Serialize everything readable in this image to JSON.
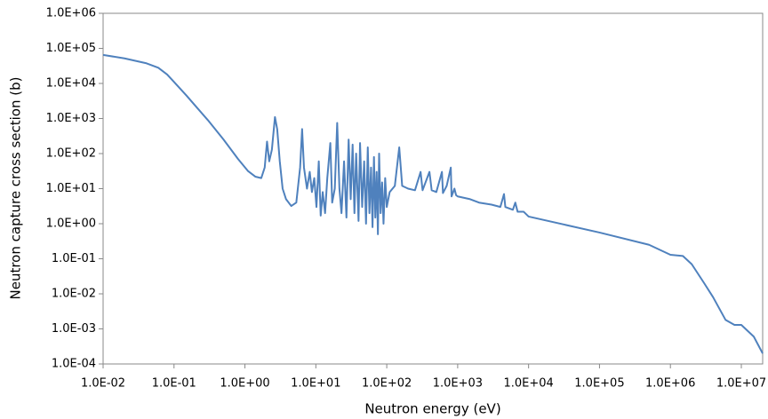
{
  "chart_data": {
    "type": "line",
    "x_label": "Neutron energy (eV)",
    "y_label": "Neutron capture cross section (b)",
    "log_x": true,
    "log_y": true,
    "grid": false,
    "color": "#4f81bd",
    "xlim": [
      0.01,
      20000000
    ],
    "ylim": [
      0.0001,
      1000000
    ],
    "xticks": [
      {
        "value": 0.01,
        "label": "1.0E-02"
      },
      {
        "value": 0.1,
        "label": "1.0E-01"
      },
      {
        "value": 1,
        "label": "1.0E+00"
      },
      {
        "value": 10,
        "label": "1.0E+01"
      },
      {
        "value": 100,
        "label": "1.0E+02"
      },
      {
        "value": 1000,
        "label": "1.0E+03"
      },
      {
        "value": 10000,
        "label": "1.0E+04"
      },
      {
        "value": 100000,
        "label": "1.0E+05"
      },
      {
        "value": 1000000,
        "label": "1.0E+06"
      },
      {
        "value": 10000000,
        "label": "1.0E+07"
      }
    ],
    "yticks": [
      {
        "value": 0.0001,
        "label": "1.0E-04"
      },
      {
        "value": 0.001,
        "label": "1.0E-03"
      },
      {
        "value": 0.01,
        "label": "1.0E-02"
      },
      {
        "value": 0.1,
        "label": "1.0E-01"
      },
      {
        "value": 1,
        "label": "1.0E+00"
      },
      {
        "value": 10,
        "label": "1.0E+01"
      },
      {
        "value": 100,
        "label": "1.0E+02"
      },
      {
        "value": 1000,
        "label": "1.0E+03"
      },
      {
        "value": 10000,
        "label": "1.0E+04"
      },
      {
        "value": 100000,
        "label": "1.0E+05"
      },
      {
        "value": 1000000,
        "label": "1.0E+06"
      }
    ],
    "x": [
      0.01,
      0.02,
      0.04,
      0.06,
      0.08,
      0.1,
      0.15,
      0.2,
      0.3,
      0.5,
      0.8,
      1.1,
      1.4,
      1.7,
      1.9,
      2.05,
      2.2,
      2.4,
      2.65,
      2.85,
      3.1,
      3.4,
      3.8,
      4.5,
      5.3,
      6.0,
      6.4,
      6.8,
      7.5,
      8.2,
      8.8,
      9.5,
      10.2,
      11,
      11.7,
      12.5,
      13.5,
      14.5,
      16,
      17,
      18.5,
      20,
      21.5,
      23,
      25,
      27,
      29,
      31,
      33,
      35,
      37,
      40,
      42,
      45,
      48,
      51,
      54,
      57,
      60,
      63,
      66,
      69,
      72,
      75,
      78,
      82,
      86,
      90,
      95,
      100,
      110,
      130,
      150,
      165,
      200,
      250,
      300,
      320,
      400,
      430,
      500,
      600,
      620,
      700,
      800,
      820,
      900,
      950,
      1000,
      1500,
      2000,
      3000,
      4000,
      4500,
      4700,
      6000,
      6500,
      7000,
      8500,
      10000,
      100000,
      500000,
      1000000,
      1500000,
      2000000,
      3000000,
      4000000,
      6000000,
      8000000,
      10000000,
      15000000,
      20000000
    ],
    "values": [
      65000,
      52000,
      38000,
      28000,
      18000,
      11000,
      4500,
      2300,
      900,
      250,
      70,
      32,
      22,
      20,
      40,
      220,
      60,
      130,
      1100,
      500,
      60,
      10,
      5,
      3.2,
      4,
      40,
      500,
      40,
      10,
      30,
      8,
      20,
      3,
      60,
      1.7,
      8,
      2,
      20,
      200,
      4,
      10,
      750,
      10,
      2,
      60,
      1.5,
      250,
      5,
      180,
      2,
      100,
      1.2,
      200,
      3,
      60,
      1,
      150,
      2,
      40,
      0.8,
      80,
      1.5,
      30,
      0.5,
      100,
      2,
      15,
      1,
      20,
      3,
      8,
      12,
      150,
      12,
      10,
      9,
      30,
      9,
      30,
      9,
      8,
      30,
      7.5,
      12,
      40,
      6,
      10,
      6.5,
      6,
      5,
      4,
      3.5,
      3,
      7,
      3,
      2.5,
      4,
      2.2,
      2.2,
      1.6,
      0.56,
      0.25,
      0.13,
      0.12,
      0.07,
      0.02,
      0.008,
      0.0018,
      0.0013,
      0.0013,
      0.0006,
      0.0002
    ]
  }
}
